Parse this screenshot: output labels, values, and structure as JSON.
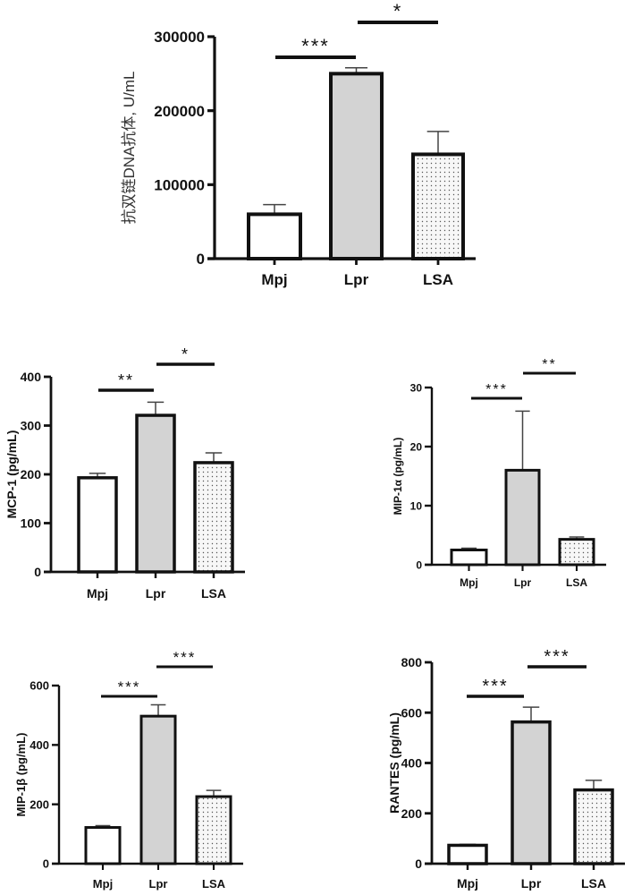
{
  "colors": {
    "axis": "#111111",
    "mpj": "#ffffff",
    "lpr": "#d3d3d3",
    "lsa": "#f4f4f4",
    "dots": "#555555"
  },
  "chart_data": [
    {
      "type": "bar",
      "ylabel": "抗双链DNA抗体, U/mL",
      "categories": [
        "Mpj",
        "Lpr",
        "LSA"
      ],
      "values": [
        60000,
        250000,
        141000
      ],
      "errors": [
        13000,
        8000,
        31000
      ],
      "ylim": [
        0,
        300000
      ],
      "yticks": [
        0,
        100000,
        200000,
        300000
      ],
      "ytick_labels": [
        "0",
        "100000",
        "200000",
        "300000"
      ],
      "significance": [
        {
          "from": "Mpj",
          "to": "Lpr",
          "label": "***"
        },
        {
          "from": "Lpr",
          "to": "LSA",
          "label": "*"
        }
      ]
    },
    {
      "type": "bar",
      "ylabel": "MCP-1 (pg/mL)",
      "categories": [
        "Mpj",
        "Lpr",
        "LSA"
      ],
      "values": [
        193,
        321,
        224
      ],
      "errors": [
        9,
        27,
        20
      ],
      "ylim": [
        0,
        400
      ],
      "yticks": [
        0,
        100,
        200,
        300,
        400
      ],
      "ytick_labels": [
        "0",
        "100",
        "200",
        "300",
        "400"
      ],
      "significance": [
        {
          "from": "Mpj",
          "to": "Lpr",
          "label": "**"
        },
        {
          "from": "Lpr",
          "to": "LSA",
          "label": "*"
        }
      ]
    },
    {
      "type": "bar",
      "ylabel": "MIP-1α (pg/mL)",
      "categories": [
        "Mpj",
        "Lpr",
        "LSA"
      ],
      "values": [
        2.5,
        16,
        4.3
      ],
      "errors": [
        0.3,
        10,
        0.4
      ],
      "ylim": [
        0,
        30
      ],
      "yticks": [
        0,
        10,
        20,
        30
      ],
      "ytick_labels": [
        "0",
        "10",
        "20",
        "30"
      ],
      "significance": [
        {
          "from": "Mpj",
          "to": "Lpr",
          "label": "***"
        },
        {
          "from": "Lpr",
          "to": "LSA",
          "label": "**"
        }
      ]
    },
    {
      "type": "bar",
      "ylabel": "MIP-1β (pg/mL)",
      "categories": [
        "Mpj",
        "Lpr",
        "LSA"
      ],
      "values": [
        122,
        497,
        226
      ],
      "errors": [
        6,
        38,
        21
      ],
      "ylim": [
        0,
        600
      ],
      "yticks": [
        0,
        200,
        400,
        600
      ],
      "ytick_labels": [
        "0",
        "200",
        "400",
        "600"
      ],
      "significance": [
        {
          "from": "Mpj",
          "to": "Lpr",
          "label": "***"
        },
        {
          "from": "Lpr",
          "to": "LSA",
          "label": "***"
        }
      ]
    },
    {
      "type": "bar",
      "ylabel": "RANTES (pg/mL)",
      "categories": [
        "Mpj",
        "Lpr",
        "LSA"
      ],
      "values": [
        73,
        563,
        293
      ],
      "errors": [
        4,
        59,
        38
      ],
      "ylim": [
        0,
        800
      ],
      "yticks": [
        0,
        200,
        400,
        600,
        800
      ],
      "ytick_labels": [
        "0",
        "200",
        "400",
        "600",
        "800"
      ],
      "significance": [
        {
          "from": "Mpj",
          "to": "Lpr",
          "label": "***"
        },
        {
          "from": "Lpr",
          "to": "LSA",
          "label": "***"
        }
      ]
    }
  ]
}
